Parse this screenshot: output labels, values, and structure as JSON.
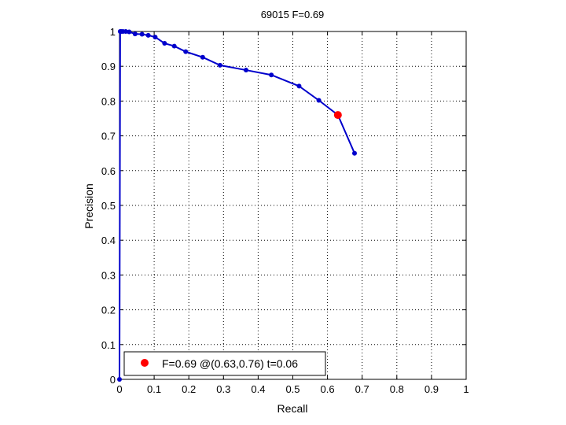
{
  "chart_data": {
    "type": "line",
    "title": "69015 F=0.69",
    "xlabel": "Recall",
    "ylabel": "Precision",
    "xlim": [
      0,
      1
    ],
    "ylim": [
      0,
      1
    ],
    "grid": true,
    "xticks": [
      0,
      0.1,
      0.2,
      0.3,
      0.4,
      0.5,
      0.6,
      0.7,
      0.8,
      0.9,
      1
    ],
    "yticks": [
      0,
      0.1,
      0.2,
      0.3,
      0.4,
      0.5,
      0.6,
      0.7,
      0.8,
      0.9,
      1
    ],
    "xtick_labels": [
      "0",
      "0.1",
      "0.2",
      "0.3",
      "0.4",
      "0.5",
      "0.6",
      "0.7",
      "0.8",
      "0.9",
      "1"
    ],
    "ytick_labels": [
      "0",
      "0.1",
      "0.2",
      "0.3",
      "0.4",
      "0.5",
      "0.6",
      "0.7",
      "0.8",
      "0.9",
      "1"
    ],
    "series": [
      {
        "color": "#0000cc",
        "x": [
          0.0,
          0.002,
          0.005,
          0.01,
          0.018,
          0.028,
          0.045,
          0.065,
          0.083,
          0.103,
          0.13,
          0.158,
          0.191,
          0.24,
          0.29,
          0.365,
          0.438,
          0.518,
          0.575,
          0.63,
          0.678
        ],
        "y": [
          0.0,
          1.0,
          1.0,
          1.0,
          1.0,
          0.999,
          0.993,
          0.992,
          0.989,
          0.984,
          0.966,
          0.958,
          0.942,
          0.926,
          0.903,
          0.889,
          0.875,
          0.843,
          0.802,
          0.76,
          0.65
        ]
      }
    ],
    "highlight": {
      "x": 0.63,
      "y": 0.76,
      "color": "#ff0000"
    },
    "legend": {
      "label": "F=0.69 @(0.63,0.76) t=0.06",
      "placement": "bottom-left"
    }
  }
}
